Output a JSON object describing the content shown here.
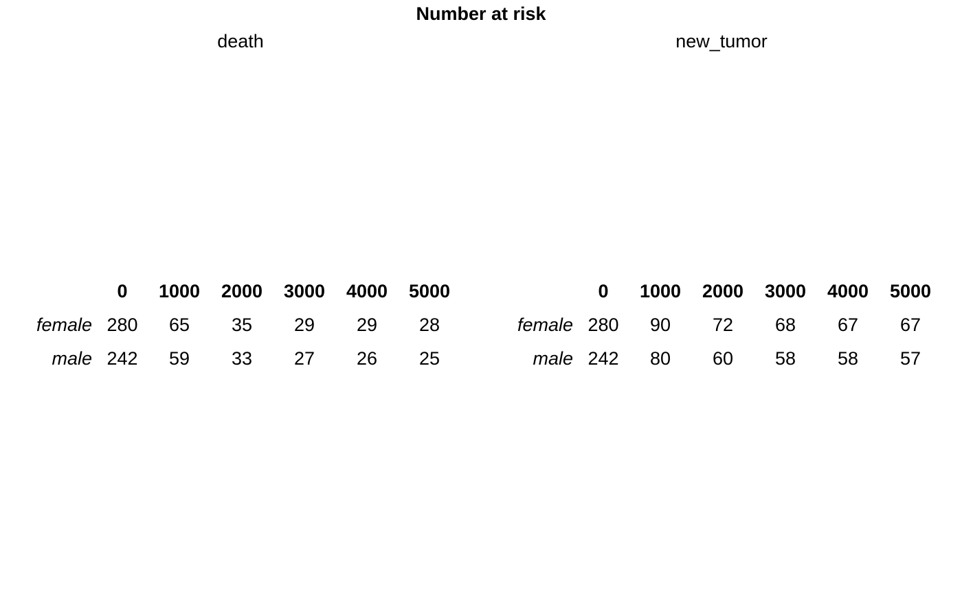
{
  "title": "Number at risk",
  "chart_data": [
    {
      "type": "table",
      "title": "death",
      "columns": [
        "0",
        "1000",
        "2000",
        "3000",
        "4000",
        "5000"
      ],
      "rows": [
        {
          "label": "female",
          "values": [
            280,
            65,
            35,
            29,
            29,
            28
          ]
        },
        {
          "label": "male",
          "values": [
            242,
            59,
            33,
            27,
            26,
            25
          ]
        }
      ]
    },
    {
      "type": "table",
      "title": "new_tumor",
      "columns": [
        "0",
        "1000",
        "2000",
        "3000",
        "4000",
        "5000"
      ],
      "rows": [
        {
          "label": "female",
          "values": [
            280,
            90,
            72,
            68,
            67,
            67
          ]
        },
        {
          "label": "male",
          "values": [
            242,
            80,
            60,
            58,
            58,
            57
          ]
        }
      ]
    }
  ]
}
